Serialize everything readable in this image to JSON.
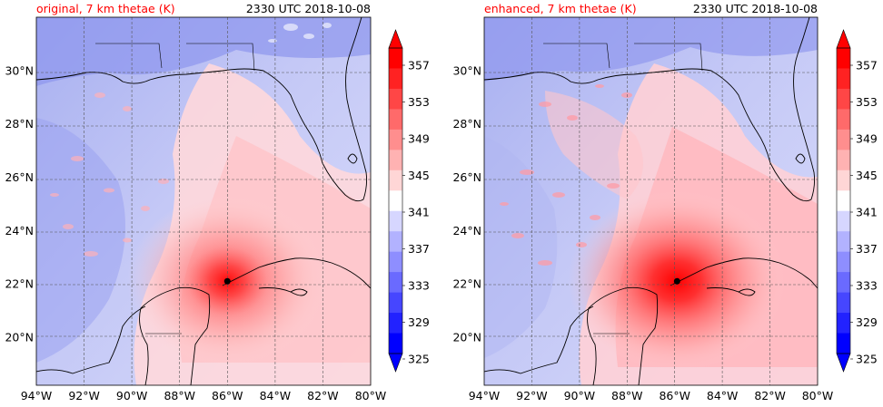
{
  "panels": [
    {
      "title": "original, 7 km thetae (K)",
      "time": "2330 UTC 2018-10-08",
      "title_color": "#ff0000",
      "marker": {
        "lon": -86.0,
        "lat": 22.1
      },
      "intensity": 0.9
    },
    {
      "title": "enhanced, 7 km thetae (K)",
      "time": "2330 UTC 2018-10-08",
      "title_color": "#ff0000",
      "marker": {
        "lon": -85.9,
        "lat": 22.1
      },
      "intensity": 1.0
    }
  ],
  "map": {
    "lon_range": [
      -94,
      -80
    ],
    "lat_range": [
      18.2,
      32.0
    ],
    "lon_ticks": [
      "94°W",
      "92°W",
      "90°W",
      "88°W",
      "86°W",
      "84°W",
      "82°W",
      "80°W"
    ],
    "lat_ticks": [
      "30°N",
      "28°N",
      "26°N",
      "24°N",
      "22°N",
      "20°N"
    ]
  },
  "colorbar": {
    "labels": [
      "357",
      "353",
      "349",
      "345",
      "341",
      "337",
      "333",
      "329",
      "325"
    ],
    "colors": [
      "#ff0000",
      "#ff2222",
      "#ff4646",
      "#ff6a6a",
      "#ff8e8e",
      "#ffb2b2",
      "#ffd6d6",
      "#ffffff",
      "#d6d6ff",
      "#b2b2ff",
      "#8e8eff",
      "#6a6aff",
      "#4646ff",
      "#2222ff",
      "#0000ff"
    ]
  }
}
